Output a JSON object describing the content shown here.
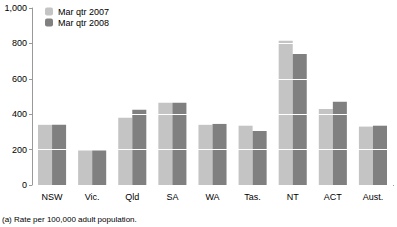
{
  "chart_data": {
    "type": "bar",
    "categories": [
      "NSW",
      "Vic.",
      "Qld",
      "SA",
      "WA",
      "Tas.",
      "NT",
      "ACT",
      "Aust."
    ],
    "series": [
      {
        "name": "Mar qtr 2007",
        "color": "#c4c4c4",
        "values": [
          340,
          195,
          380,
          465,
          340,
          335,
          815,
          430,
          330
        ]
      },
      {
        "name": "Mar qtr 2008",
        "color": "#808080",
        "values": [
          340,
          195,
          425,
          465,
          345,
          305,
          740,
          470,
          335
        ]
      }
    ],
    "ylim": [
      0,
      1000
    ],
    "yticks": [
      0,
      200,
      400,
      600,
      800,
      1000
    ],
    "grid": true,
    "legend": "top-left",
    "annotations": [
      "(a) Rate per 100,000 adult population."
    ]
  }
}
